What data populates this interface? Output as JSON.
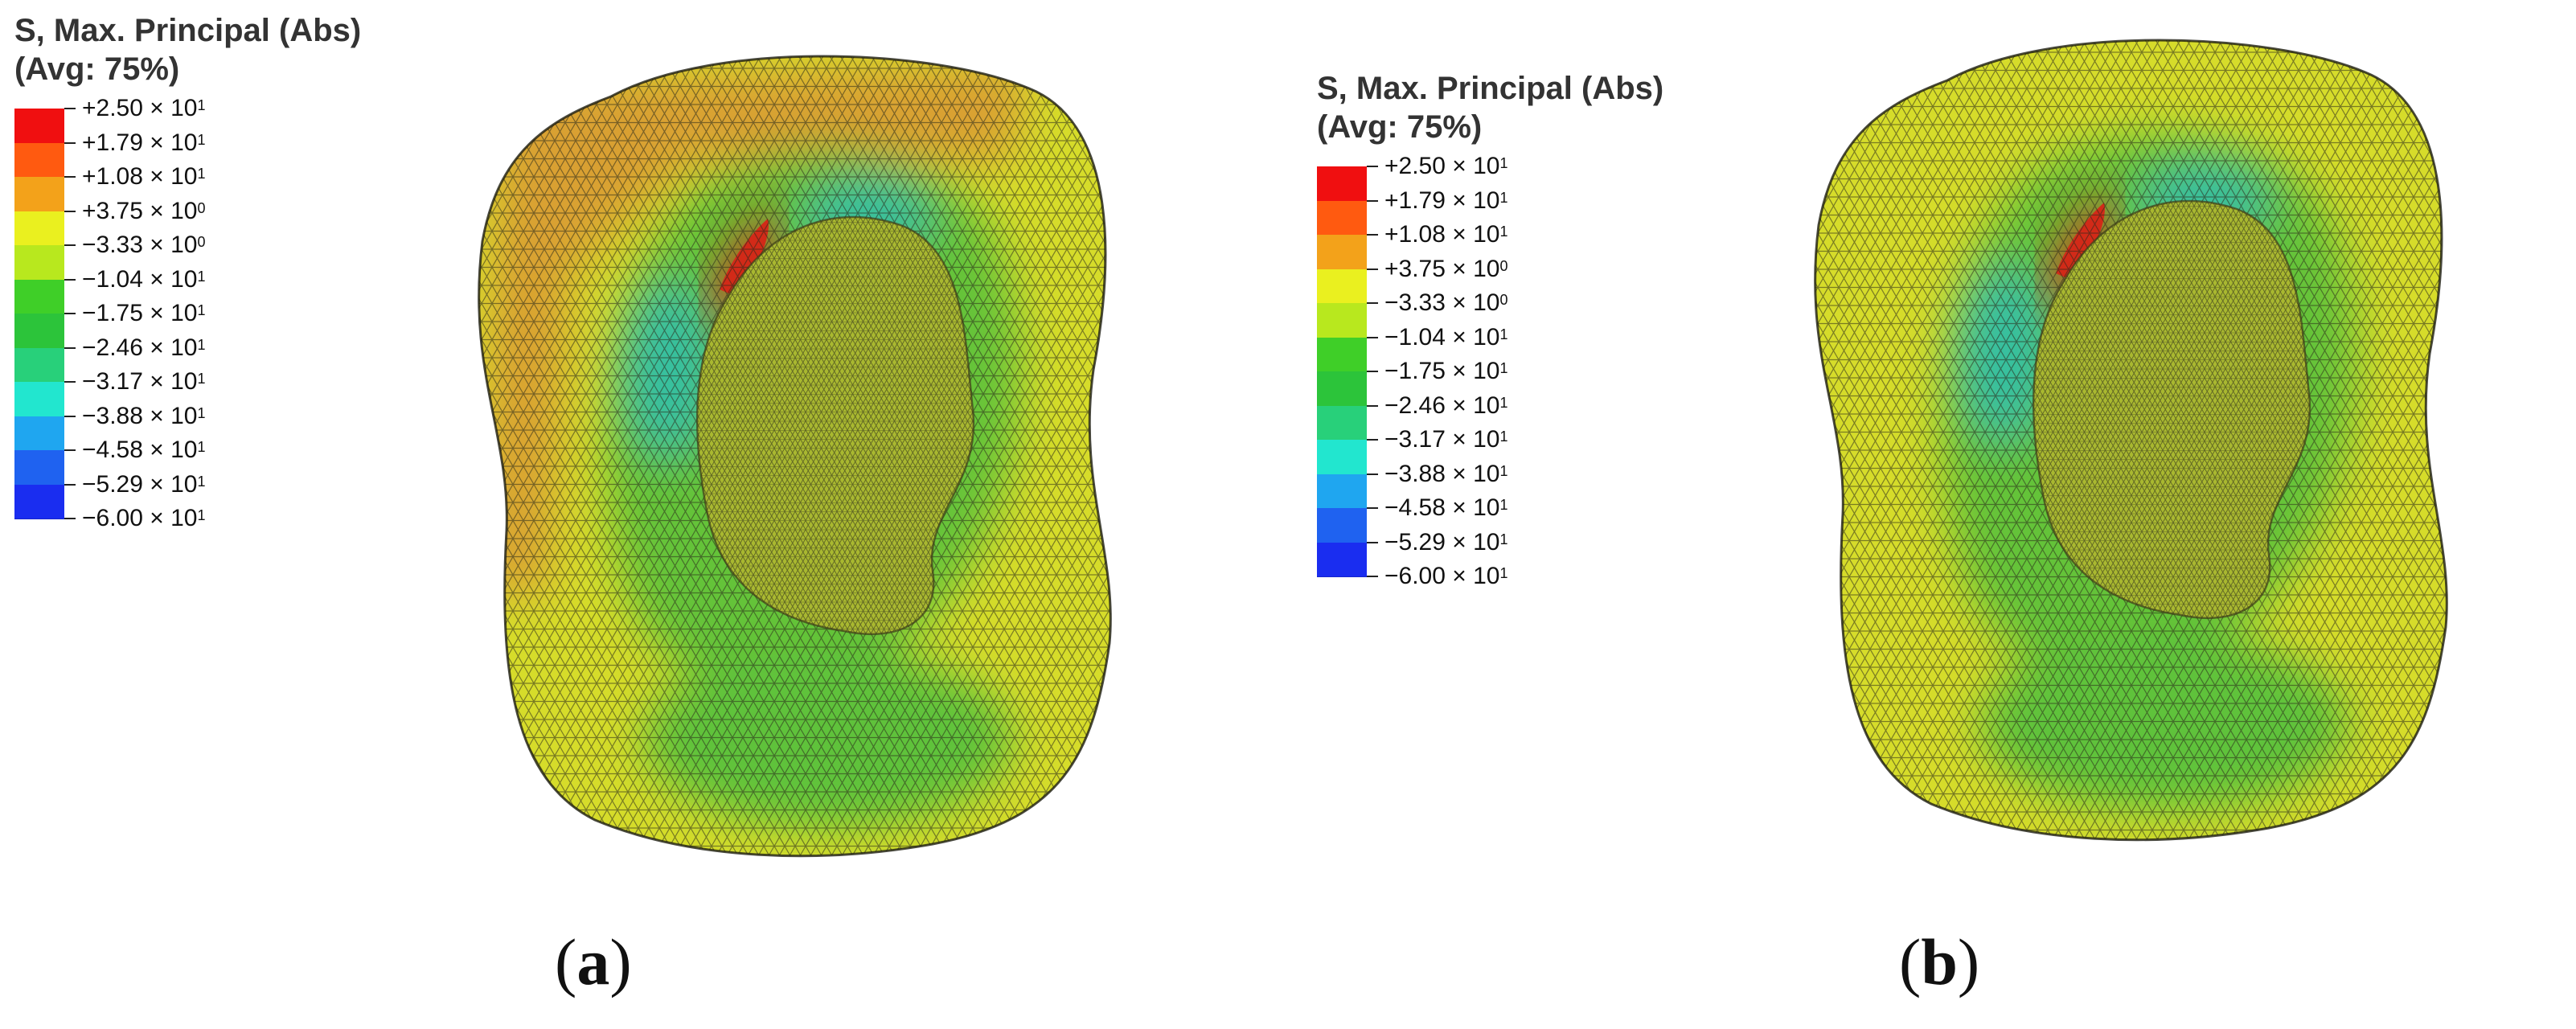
{
  "panels": [
    {
      "id": "a",
      "legend_title_line1": "S, Max. Principal (Abs)",
      "legend_title_line2": "(Avg: 75%)",
      "caption_open": "(",
      "caption_letter": "a",
      "caption_close": ")"
    },
    {
      "id": "b",
      "legend_title_line1": "S, Max. Principal (Abs)",
      "legend_title_line2": "(Avg: 75%)",
      "caption_open": "(",
      "caption_letter": "b",
      "caption_close": ")"
    }
  ],
  "legend_levels": [
    {
      "mantissa": "+2.50 × 10",
      "exp": "1"
    },
    {
      "mantissa": "+1.79 × 10",
      "exp": "1"
    },
    {
      "mantissa": "+1.08 × 10",
      "exp": "1"
    },
    {
      "mantissa": "+3.75 × 10",
      "exp": "0"
    },
    {
      "mantissa": "−3.33 × 10",
      "exp": "0"
    },
    {
      "mantissa": "−1.04 × 10",
      "exp": "1"
    },
    {
      "mantissa": "−1.75 × 10",
      "exp": "1"
    },
    {
      "mantissa": "−2.46 × 10",
      "exp": "1"
    },
    {
      "mantissa": "−3.17 × 10",
      "exp": "1"
    },
    {
      "mantissa": "−3.88 × 10",
      "exp": "1"
    },
    {
      "mantissa": "−4.58 × 10",
      "exp": "1"
    },
    {
      "mantissa": "−5.29 × 10",
      "exp": "1"
    },
    {
      "mantissa": "−6.00 × 10",
      "exp": "1"
    }
  ],
  "legend_colors": [
    "#f00f10",
    "#ff5a10",
    "#f3a21a",
    "#eaf01f",
    "#b8e81e",
    "#3fcf28",
    "#2cc43a",
    "#28d07a",
    "#22e6cf",
    "#1fa6f0",
    "#1f62f0",
    "#1a2df0"
  ],
  "mesh_colors": {
    "yellow": "#d6dc2a",
    "orange": "#d9a030",
    "green": "#5ec23a",
    "cyan": "#36bfa0",
    "red": "#d22a18",
    "mesh_line": "#2a2a1a"
  }
}
